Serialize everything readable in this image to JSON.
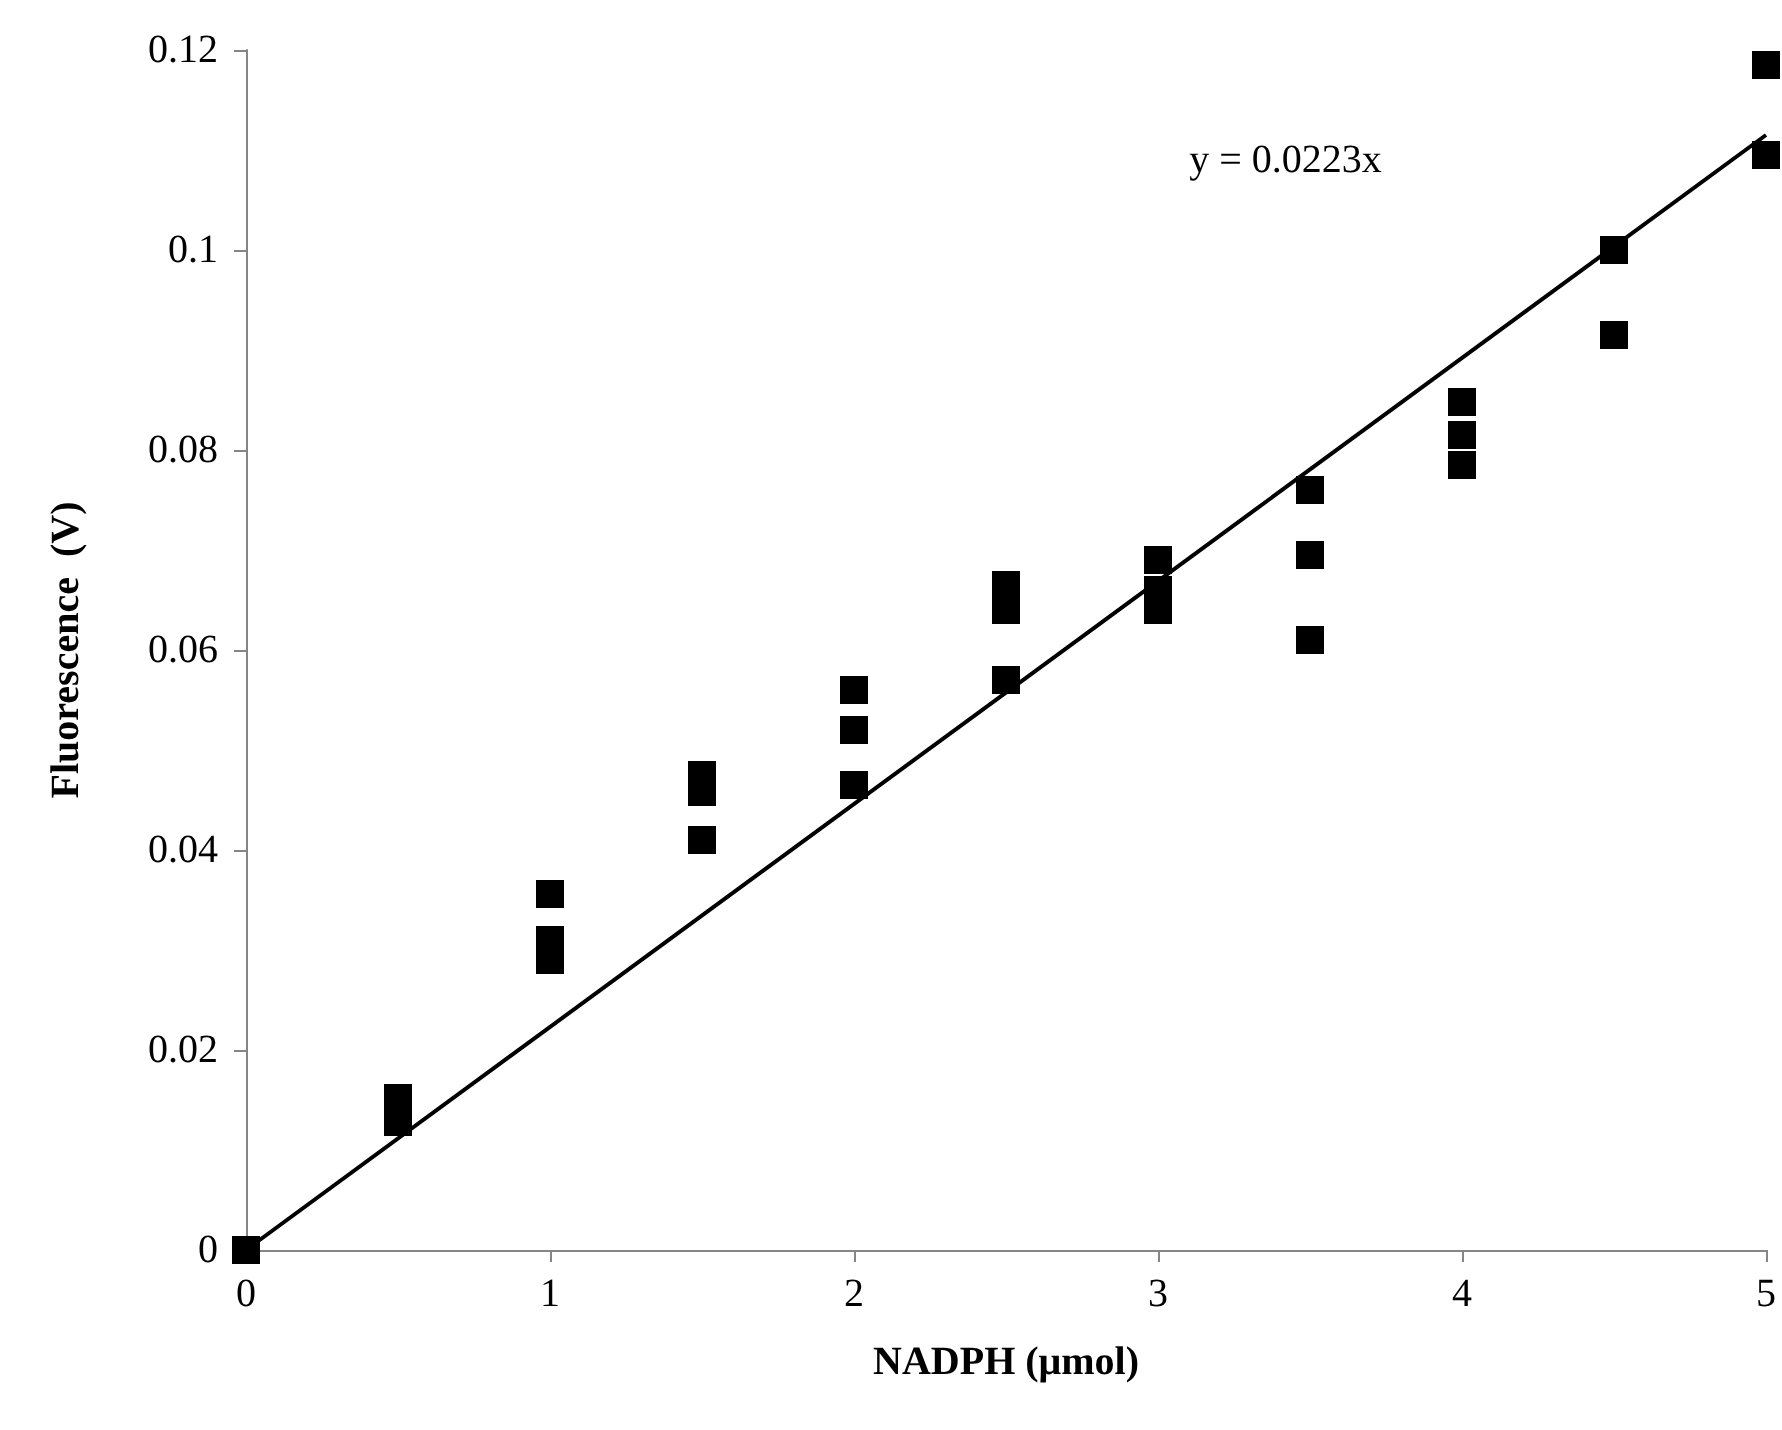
{
  "chart_data": {
    "type": "scatter",
    "xlabel": "NADPH (μmol)",
    "ylabel": "Fluorescence  (V)",
    "xlim": [
      0,
      5
    ],
    "xticks": [
      0,
      1,
      2,
      3,
      4,
      5
    ],
    "ylim": [
      0,
      0.12
    ],
    "yticks": [
      0,
      0.02,
      0.04,
      0.06,
      0.08,
      0.1,
      0.12
    ],
    "grid": false,
    "marker": "square",
    "annotations": [
      "y = 0.0223x"
    ],
    "series": [
      {
        "color": "#000000",
        "x": [
          0,
          0.5,
          0.5,
          1,
          1,
          1,
          1.5,
          1.5,
          1.5,
          2,
          2,
          2,
          2.5,
          2.5,
          2.5,
          3,
          3,
          3,
          3.5,
          3.5,
          3.5,
          4,
          4,
          4,
          4.5,
          4.5,
          5,
          5
        ],
        "values": [
          0,
          0.0152,
          0.0128,
          0.0356,
          0.031,
          0.029,
          0.0475,
          0.0458,
          0.041,
          0.056,
          0.052,
          0.0465,
          0.0665,
          0.064,
          0.057,
          0.069,
          0.066,
          0.064,
          0.076,
          0.0695,
          0.061,
          0.0848,
          0.0815,
          0.0785,
          0.1,
          0.0915,
          0.1185,
          0.1095
        ]
      },
      {
        "type": "line",
        "color": "#000000",
        "line_style": "solid",
        "marker": "none",
        "x": [
          0,
          5
        ],
        "values": [
          0,
          0.1115
        ]
      }
    ]
  }
}
